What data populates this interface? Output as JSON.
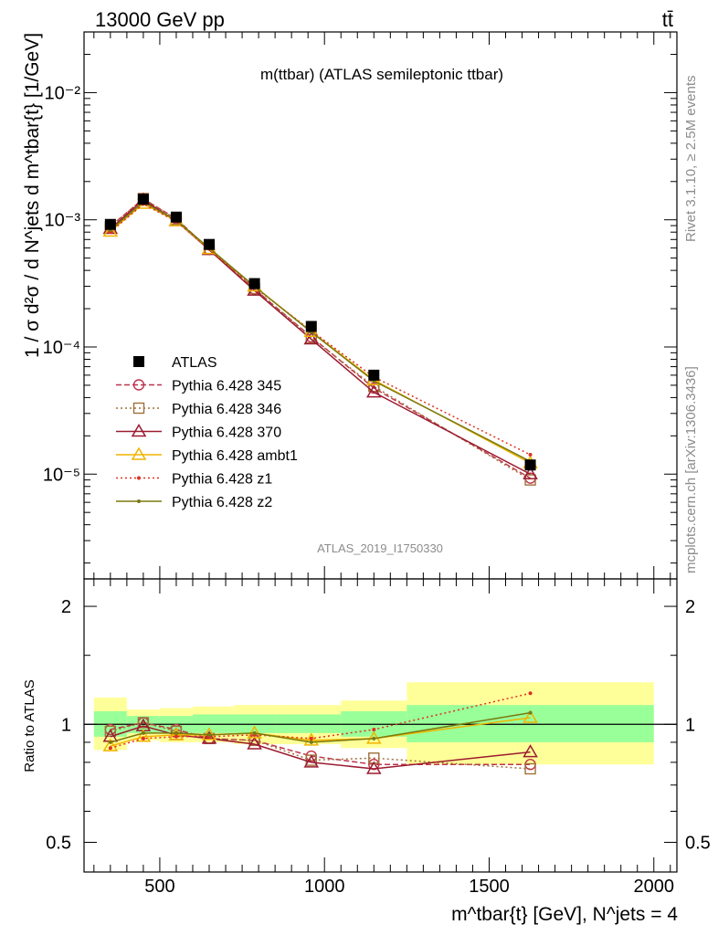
{
  "header": {
    "left": "13000 GeV pp",
    "right": "tt̄"
  },
  "side": {
    "top": "Rivet 3.1.10, ≥ 2.5M events",
    "bottom": "mcplots.cern.ch [arXiv:1306.3436]"
  },
  "colors": {
    "atlas": "#000000",
    "p345": "#c0334a",
    "p346": "#a0703a",
    "p370": "#9b1b30",
    "ambt1": "#f0b400",
    "z1": "#e03020",
    "z2": "#7a7a10",
    "band_inner": "#99ff99",
    "band_outer": "#ffff99"
  },
  "chart_data": [
    {
      "type": "line",
      "title": "m(ttbar) (ATLAS semileptonic ttbar)",
      "ylabel": "1 / σ d²σ / d N^jets d m^tbar{t} [1/GeV]",
      "watermark": "ATLAS_2019_I1750330",
      "ylog": true,
      "xlim": [
        270,
        2070
      ],
      "ylim": [
        1.5e-06,
        0.03
      ],
      "ytick_labels": [
        "10⁻⁵",
        "10⁻⁴",
        "10⁻³",
        "10⁻²"
      ],
      "legend_position": "lower-left",
      "x": [
        350,
        450,
        550,
        650,
        787.5,
        960,
        1150,
        1625
      ],
      "series": [
        {
          "name": "ATLAS",
          "marker": "square",
          "values": [
            0.00092,
            0.00145,
            0.00105,
            0.00064,
            0.000315,
            0.000145,
            6e-05,
            1.18e-05
          ]
        },
        {
          "name": "Pythia 6.428 345",
          "marker": "circle",
          "dash": "6,3",
          "values": [
            0.00089,
            0.00146,
            0.00102,
            0.000585,
            0.000285,
            0.00012,
            4.75e-05,
            9.3e-06
          ]
        },
        {
          "name": "Pythia 6.428 346",
          "marker": "square-open",
          "dash": "2,3",
          "values": [
            0.00088,
            0.00147,
            0.00101,
            0.00059,
            0.000288,
            0.000118,
            4.9e-05,
            9e-06
          ]
        },
        {
          "name": "Pythia 6.428 370",
          "marker": "triangle",
          "dash": "",
          "values": [
            0.00085,
            0.00143,
            0.00098,
            0.00058,
            0.000278,
            0.000115,
            4.4e-05,
            1e-05
          ]
        },
        {
          "name": "Pythia 6.428 ambt1",
          "marker": "triangle",
          "dash": "",
          "values": [
            0.00081,
            0.00134,
            0.00098,
            0.00059,
            0.0003,
            0.000132,
            5.5e-05,
            1.22e-05
          ]
        },
        {
          "name": "Pythia 6.428 z1",
          "marker": "dot",
          "dash": "2,3",
          "values": [
            0.0008,
            0.00133,
            0.00097,
            0.00059,
            0.000295,
            0.000134,
            5.8e-05,
            1.42e-05
          ]
        },
        {
          "name": "Pythia 6.428 z2",
          "marker": "dot",
          "dash": "",
          "values": [
            0.00083,
            0.00138,
            0.00099,
            0.0006,
            0.0003,
            0.000131,
            5.4e-05,
            1.26e-05
          ]
        }
      ]
    },
    {
      "type": "line",
      "ylabel": "Ratio to ATLAS",
      "xlabel": "m^tbar{t} [GeV], N^jets = 4",
      "xlim": [
        270,
        2070
      ],
      "ylim": [
        0.42,
        2.35
      ],
      "ylog": true,
      "ytick_values": [
        0.5,
        1,
        2
      ],
      "ytick_labels": [
        "0.5",
        "1",
        "2"
      ],
      "xtick_values": [
        500,
        1000,
        1500,
        2000
      ],
      "xtick_labels": [
        "500",
        "1000",
        "1500",
        "2000"
      ],
      "bins": [
        {
          "lo": 300,
          "hi": 400,
          "inner": [
            0.93,
            1.08
          ],
          "outer": [
            0.86,
            1.17
          ]
        },
        {
          "lo": 400,
          "hi": 500,
          "inner": [
            0.95,
            1.05
          ],
          "outer": [
            0.91,
            1.09
          ]
        },
        {
          "lo": 500,
          "hi": 600,
          "inner": [
            0.95,
            1.05
          ],
          "outer": [
            0.9,
            1.1
          ]
        },
        {
          "lo": 600,
          "hi": 725,
          "inner": [
            0.95,
            1.06
          ],
          "outer": [
            0.9,
            1.11
          ]
        },
        {
          "lo": 725,
          "hi": 850,
          "inner": [
            0.95,
            1.06
          ],
          "outer": [
            0.89,
            1.12
          ]
        },
        {
          "lo": 850,
          "hi": 1050,
          "inner": [
            0.95,
            1.06
          ],
          "outer": [
            0.89,
            1.12
          ]
        },
        {
          "lo": 1050,
          "hi": 1250,
          "inner": [
            0.93,
            1.08
          ],
          "outer": [
            0.87,
            1.15
          ]
        },
        {
          "lo": 1250,
          "hi": 2000,
          "inner": [
            0.9,
            1.12
          ],
          "outer": [
            0.79,
            1.28
          ]
        }
      ],
      "x": [
        350,
        450,
        550,
        650,
        787.5,
        960,
        1150,
        1625
      ],
      "series": [
        {
          "name": "Pythia 6.428 345",
          "values": [
            0.97,
            1.01,
            0.97,
            0.92,
            0.91,
            0.83,
            0.79,
            0.79
          ]
        },
        {
          "name": "Pythia 6.428 346",
          "values": [
            0.96,
            1.01,
            0.96,
            0.92,
            0.91,
            0.81,
            0.82,
            0.77
          ]
        },
        {
          "name": "Pythia 6.428 370",
          "values": [
            0.93,
            0.99,
            0.94,
            0.92,
            0.89,
            0.8,
            0.77,
            0.85
          ]
        },
        {
          "name": "Pythia 6.428 ambt1",
          "values": [
            0.88,
            0.93,
            0.94,
            0.94,
            0.95,
            0.91,
            0.92,
            1.04
          ]
        },
        {
          "name": "Pythia 6.428 z1",
          "values": [
            0.87,
            0.92,
            0.93,
            0.93,
            0.94,
            0.92,
            0.97,
            1.2
          ]
        },
        {
          "name": "Pythia 6.428 z2",
          "values": [
            0.9,
            0.95,
            0.95,
            0.94,
            0.95,
            0.9,
            0.92,
            1.07
          ]
        }
      ]
    }
  ]
}
